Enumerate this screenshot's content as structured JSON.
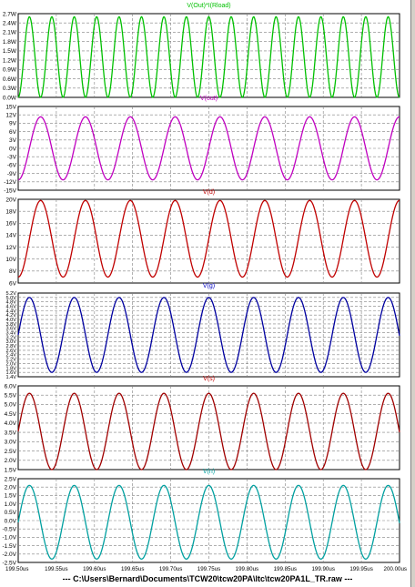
{
  "footer": "---  C:\\Users\\Bernard\\Documents\\TCW20\\tcw20PA\\ltc\\tcw20PA1L_TR.raw  ---",
  "chart_data": {
    "type": "line",
    "x_unit": "us",
    "xlim": [
      199.5,
      200.0
    ],
    "x_ticks": [
      "199.50us",
      "199.55us",
      "199.60us",
      "199.65us",
      "199.70us",
      "199.75us",
      "199.80us",
      "199.85us",
      "199.90us",
      "199.95us",
      "200.00us"
    ],
    "grid": true,
    "panels": [
      {
        "title": "V(Out)*I(Rload)",
        "title_color": "#00c000",
        "color": "#00c000",
        "ylim": [
          0,
          2.7
        ],
        "yticks": [
          "0.0W",
          "0.3W",
          "0.6W",
          "0.9W",
          "1.2W",
          "1.5W",
          "1.8W",
          "2.1W",
          "2.4W",
          "2.7W"
        ],
        "period_us": 0.0294,
        "phase_us": 199.5,
        "waveform": "sin2",
        "amplitude": 2.6,
        "offset": 0
      },
      {
        "title": "V(out)",
        "title_color": "#c000c0",
        "color": "#c000c0",
        "ylim": [
          -15,
          15
        ],
        "yticks": [
          "-15V",
          "-12V",
          "-9V",
          "-6V",
          "-3V",
          "0V",
          "3V",
          "6V",
          "9V",
          "12V",
          "15V"
        ],
        "period_us": 0.0588,
        "phase_us": 199.5147,
        "waveform": "sin",
        "amplitude": 11.3,
        "offset": 0
      },
      {
        "title": "V(d)",
        "title_color": "#c00000",
        "color": "#c00000",
        "ylim": [
          6,
          20
        ],
        "yticks": [
          "6V",
          "8V",
          "10V",
          "12V",
          "14V",
          "16V",
          "18V",
          "20V"
        ],
        "period_us": 0.0588,
        "phase_us": 199.5147,
        "waveform": "sin",
        "amplitude": 6.4,
        "offset": 13.4
      },
      {
        "title": "V(g)",
        "title_color": "#0000c0",
        "color": "#0000a0",
        "ylim": [
          1.4,
          5.2
        ],
        "yticks": [
          "1.4V",
          "1.6V",
          "1.8V",
          "2.0V",
          "2.2V",
          "2.4V",
          "2.6V",
          "2.8V",
          "3.0V",
          "3.2V",
          "3.4V",
          "3.6V",
          "3.8V",
          "4.0V",
          "4.2V",
          "4.4V",
          "4.6V",
          "4.8V",
          "5.0V",
          "5.2V"
        ],
        "period_us": 0.0588,
        "phase_us": 199.5,
        "waveform": "sin",
        "amplitude": 1.7,
        "offset": 3.3
      },
      {
        "title": "V(s)",
        "title_color": "#c00000",
        "color": "#a00000",
        "ylim": [
          1.5,
          6.0
        ],
        "yticks": [
          "1.5V",
          "2.0V",
          "2.5V",
          "3.0V",
          "3.5V",
          "4.0V",
          "4.5V",
          "5.0V",
          "5.5V",
          "6.0V"
        ],
        "period_us": 0.0588,
        "phase_us": 199.5,
        "waveform": "sin",
        "amplitude": 2.05,
        "offset": 3.55
      },
      {
        "title": "V(n)",
        "title_color": "#00a0a0",
        "color": "#00a0a0",
        "ylim": [
          -2.5,
          2.5
        ],
        "yticks": [
          "-2.5V",
          "-2.0V",
          "-1.5V",
          "-1.0V",
          "-0.5V",
          "0.0V",
          "0.5V",
          "1.0V",
          "1.5V",
          "2.0V",
          "2.5V"
        ],
        "period_us": 0.0588,
        "phase_us": 199.5,
        "waveform": "sin",
        "amplitude": 2.2,
        "offset": -0.1
      }
    ]
  }
}
